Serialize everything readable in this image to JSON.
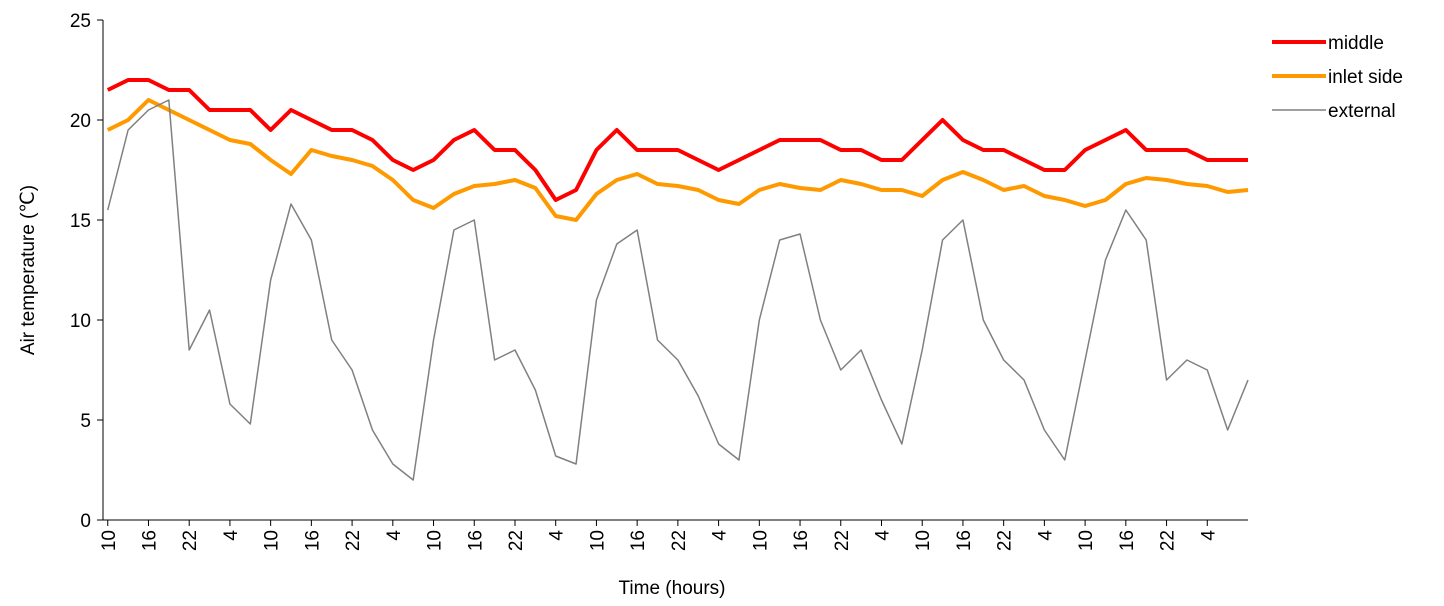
{
  "chart_data": {
    "type": "line",
    "xlabel": "Time (hours)",
    "ylabel": "Air temperature (℃)",
    "x": [
      0,
      3,
      6,
      9,
      12,
      15,
      18,
      21,
      24,
      27,
      30,
      33,
      36,
      39,
      42,
      45,
      48,
      51,
      54,
      57,
      60,
      63,
      66,
      69,
      72,
      75,
      78,
      81,
      84,
      87,
      90,
      93,
      96,
      99,
      102,
      105,
      108,
      111,
      114,
      117,
      120,
      123,
      126,
      129,
      132,
      135,
      138,
      141,
      144,
      147,
      150,
      153,
      156,
      159,
      162,
      165,
      168
    ],
    "series": [
      {
        "name": "middle",
        "color": "#ff0000",
        "width": 4,
        "values": [
          21.5,
          22,
          22,
          21.5,
          21.5,
          20.5,
          20.5,
          20.5,
          19.5,
          20.5,
          20,
          19.5,
          19.5,
          19,
          18,
          17.5,
          18,
          19,
          19.5,
          18.5,
          18.5,
          17.5,
          16,
          16.5,
          18.5,
          19.5,
          18.5,
          18.5,
          18.5,
          18,
          17.5,
          18,
          18.5,
          19,
          19,
          19,
          18.5,
          18.5,
          18,
          18,
          19,
          20,
          19,
          18.5,
          18.5,
          18,
          17.5,
          17.5,
          18.5,
          19,
          19.5,
          18.5,
          18.5,
          18.5,
          18,
          18,
          18
        ]
      },
      {
        "name": "inlet side",
        "color": "#ff9900",
        "width": 4,
        "values": [
          19.5,
          20,
          21,
          20.5,
          20,
          19.5,
          19,
          18.8,
          18,
          17.3,
          18.5,
          18.2,
          18,
          17.7,
          17,
          16,
          15.6,
          16.3,
          16.7,
          16.8,
          17,
          16.6,
          15.2,
          15,
          16.3,
          17,
          17.3,
          16.8,
          16.7,
          16.5,
          16,
          15.8,
          16.5,
          16.8,
          16.6,
          16.5,
          17,
          16.8,
          16.5,
          16.5,
          16.2,
          17,
          17.4,
          17,
          16.5,
          16.7,
          16.2,
          16,
          15.7,
          16,
          16.8,
          17.1,
          17,
          16.8,
          16.7,
          16.4,
          16.5
        ]
      },
      {
        "name": "external",
        "color": "#808080",
        "width": 1.5,
        "values": [
          15.5,
          19.5,
          20.5,
          21,
          8.5,
          10.5,
          5.8,
          4.8,
          12,
          15.8,
          14,
          9,
          7.5,
          4.5,
          2.8,
          2,
          9,
          14.5,
          15,
          8,
          8.5,
          6.5,
          3.2,
          2.8,
          11,
          13.8,
          14.5,
          9,
          8,
          6.2,
          3.8,
          3,
          10,
          14,
          14.3,
          10,
          7.5,
          8.5,
          6,
          3.8,
          8.5,
          14,
          15,
          10,
          8,
          7,
          4.5,
          3,
          8,
          13,
          15.5,
          14,
          7,
          8,
          7.5,
          4.5,
          7
        ]
      }
    ],
    "xlim": [
      -0.7,
      168
    ],
    "xticks": [
      {
        "value": 0,
        "label": "10"
      },
      {
        "value": 6,
        "label": "16"
      },
      {
        "value": 12,
        "label": "22"
      },
      {
        "value": 18,
        "label": "4"
      },
      {
        "value": 24,
        "label": "10"
      },
      {
        "value": 30,
        "label": "16"
      },
      {
        "value": 36,
        "label": "22"
      },
      {
        "value": 42,
        "label": "4"
      },
      {
        "value": 48,
        "label": "10"
      },
      {
        "value": 54,
        "label": "16"
      },
      {
        "value": 60,
        "label": "22"
      },
      {
        "value": 66,
        "label": "4"
      },
      {
        "value": 72,
        "label": "10"
      },
      {
        "value": 78,
        "label": "16"
      },
      {
        "value": 84,
        "label": "22"
      },
      {
        "value": 90,
        "label": "4"
      },
      {
        "value": 96,
        "label": "10"
      },
      {
        "value": 102,
        "label": "16"
      },
      {
        "value": 108,
        "label": "22"
      },
      {
        "value": 114,
        "label": "4"
      },
      {
        "value": 120,
        "label": "10"
      },
      {
        "value": 126,
        "label": "16"
      },
      {
        "value": 132,
        "label": "22"
      },
      {
        "value": 138,
        "label": "4"
      },
      {
        "value": 144,
        "label": "10"
      },
      {
        "value": 150,
        "label": "16"
      },
      {
        "value": 156,
        "label": "22"
      },
      {
        "value": 162,
        "label": "4"
      }
    ],
    "ylim": [
      0,
      25
    ],
    "yticks": [
      0,
      5,
      10,
      15,
      20,
      25
    ],
    "grid": false,
    "legend": "right"
  }
}
